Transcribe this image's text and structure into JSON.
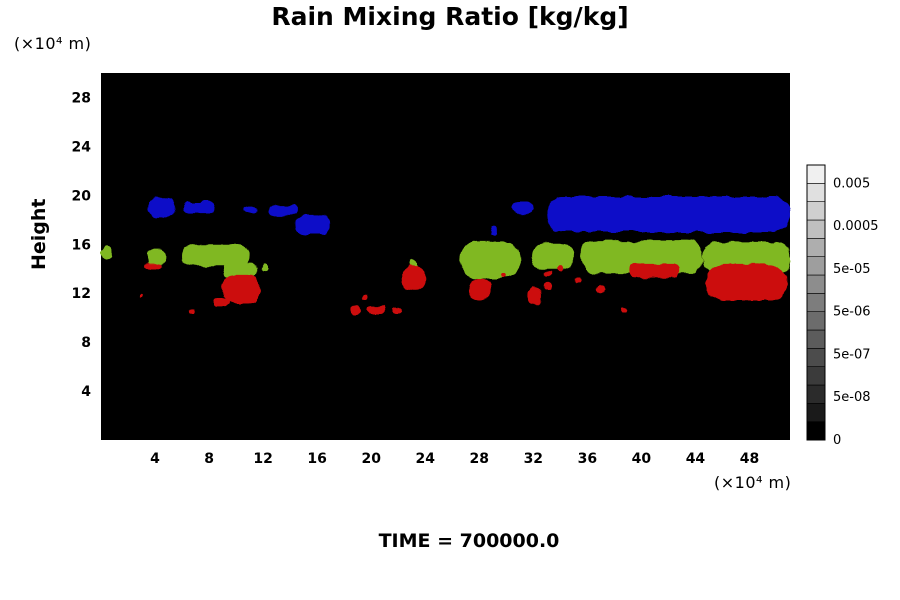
{
  "chart_data": {
    "type": "heatmap",
    "title": "Rain Mixing Ratio [kg/kg]",
    "ylabel": "Height",
    "xlabel": "",
    "x_unit": "(×10⁴ m)",
    "y_unit": "(×10⁴ m)",
    "footer": "TIME = 700000.0",
    "xlim": [
      0,
      51
    ],
    "ylim": [
      0,
      30
    ],
    "x_ticks": [
      4,
      8,
      12,
      16,
      20,
      24,
      28,
      32,
      36,
      40,
      44,
      48
    ],
    "y_ticks": [
      4,
      8,
      12,
      16,
      20,
      24,
      28
    ],
    "background": "#000000",
    "colorbar": {
      "labels": [
        "0",
        "5e-08",
        "5e-07",
        "5e-06",
        "5e-05",
        "0.0005",
        "0.005"
      ],
      "colors": [
        "#000000",
        "#1a1a1a",
        "#2b2b2b",
        "#3b3b3b",
        "#4c4c4c",
        "#5c5c5c",
        "#6c6c6c",
        "#7d7d7d",
        "#8d8d8d",
        "#9e9e9e",
        "#aeaeae",
        "#bfbfbf",
        "#cfcfcf",
        "#e0e0e0",
        "#f0f0f0"
      ]
    },
    "layers": [
      {
        "name": "upper",
        "color": "#1010c8",
        "patches": [
          [
            3.5,
            18.2,
            5.5,
            19.8
          ],
          [
            6.0,
            18.5,
            8.5,
            19.5
          ],
          [
            10.5,
            18.6,
            11.5,
            19.2
          ],
          [
            12.5,
            18.4,
            14.5,
            19.2
          ],
          [
            14.5,
            16.8,
            17.0,
            18.4
          ],
          [
            28.8,
            16.7,
            29.3,
            17.5
          ],
          [
            30.5,
            18.5,
            32.0,
            19.5
          ],
          [
            33.0,
            17.0,
            51.0,
            19.9
          ]
        ]
      },
      {
        "name": "middle",
        "color": "#80b820",
        "patches": [
          [
            0.0,
            14.8,
            0.8,
            15.8
          ],
          [
            3.4,
            14.3,
            4.8,
            15.6
          ],
          [
            6.0,
            14.2,
            11.0,
            16.0
          ],
          [
            9.0,
            13.3,
            11.6,
            14.5
          ],
          [
            11.8,
            13.8,
            12.4,
            14.5
          ],
          [
            22.8,
            13.8,
            23.5,
            14.8
          ],
          [
            26.6,
            13.2,
            31.0,
            16.2
          ],
          [
            31.8,
            14.0,
            35.0,
            16.0
          ],
          [
            35.5,
            13.6,
            44.5,
            16.3
          ],
          [
            44.5,
            13.4,
            51.0,
            16.2
          ]
        ]
      },
      {
        "name": "lower",
        "color": "#cc1010",
        "patches": [
          [
            3.3,
            14.0,
            4.5,
            14.5
          ],
          [
            2.8,
            11.6,
            3.1,
            11.9
          ],
          [
            6.5,
            10.4,
            6.9,
            10.8
          ],
          [
            8.3,
            10.8,
            9.5,
            11.6
          ],
          [
            9.0,
            11.2,
            11.8,
            13.5
          ],
          [
            18.5,
            10.3,
            19.2,
            10.9
          ],
          [
            19.3,
            11.4,
            19.8,
            11.9
          ],
          [
            19.8,
            10.3,
            21.0,
            10.9
          ],
          [
            21.5,
            10.3,
            22.3,
            10.9
          ],
          [
            22.3,
            12.2,
            24.0,
            14.4
          ],
          [
            27.2,
            11.4,
            28.8,
            13.2
          ],
          [
            29.6,
            13.2,
            30.0,
            13.6
          ],
          [
            31.6,
            11.0,
            32.6,
            12.5
          ],
          [
            32.7,
            12.3,
            33.4,
            12.8
          ],
          [
            32.7,
            13.4,
            33.4,
            13.8
          ],
          [
            33.7,
            13.8,
            34.2,
            14.3
          ],
          [
            35.0,
            12.8,
            35.5,
            13.2
          ],
          [
            36.7,
            12.0,
            37.3,
            12.6
          ],
          [
            38.5,
            10.4,
            39.0,
            10.9
          ],
          [
            39.0,
            13.3,
            42.8,
            14.4
          ],
          [
            44.8,
            11.4,
            50.8,
            14.4
          ]
        ]
      }
    ]
  }
}
